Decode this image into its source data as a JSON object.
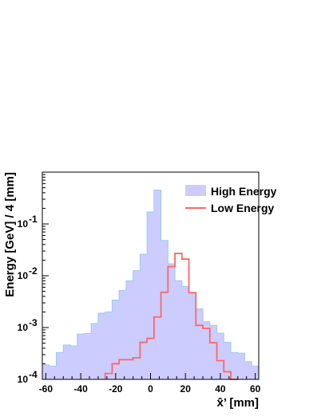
{
  "chart_data": {
    "type": "histogram",
    "xlabel": "x̂’ [mm]",
    "ylabel": "Energy [GeV] / 4 [mm]",
    "xlim": [
      -62,
      62
    ],
    "ylim": [
      0.0001,
      1.0
    ],
    "yscale": "log",
    "bin_width": 4,
    "x_ticks": [
      -60,
      -40,
      -20,
      0,
      20,
      40,
      60
    ],
    "x_tick_labels": [
      "-60",
      "-40",
      "-20",
      "0",
      "20",
      "40",
      "60"
    ],
    "y_ticks": [
      {
        "value": 0.0001,
        "base": "10",
        "exp": "-4"
      },
      {
        "value": 0.001,
        "base": "10",
        "exp": "-3"
      },
      {
        "value": 0.01,
        "base": "10",
        "exp": "-2"
      },
      {
        "value": 0.1,
        "base": "10",
        "exp": "-1"
      }
    ],
    "legend_position": "top-right",
    "series": [
      {
        "name": "High Energy",
        "style": "filled",
        "fill_color": "#ccccff",
        "line_color": "#99ccee",
        "bin_edges": [
          -62,
          -58,
          -54,
          -50,
          -46,
          -42,
          -38,
          -34,
          -30,
          -26,
          -22,
          -18,
          -14,
          -10,
          -6,
          -2,
          2,
          6,
          10,
          14,
          18,
          22,
          26,
          30,
          34,
          38,
          42,
          46,
          50,
          54,
          58,
          62
        ],
        "values": [
          0.00019,
          0.00018,
          0.00033,
          0.00046,
          0.00044,
          0.00075,
          0.00077,
          0.0012,
          0.0019,
          0.002,
          0.0034,
          0.0052,
          0.008,
          0.0125,
          0.026,
          0.17,
          0.45,
          0.048,
          0.017,
          0.008,
          0.0062,
          0.0046,
          0.0023,
          0.0013,
          0.0011,
          0.00078,
          0.00052,
          0.00033,
          0.00032,
          0.00022,
          0.00018
        ]
      },
      {
        "name": "Low Energy",
        "style": "step",
        "line_color": "#ff6666",
        "bin_edges": [
          -26,
          -22,
          -18,
          -14,
          -10,
          -6,
          -2,
          2,
          6,
          10,
          14,
          18,
          22,
          26,
          30,
          34,
          38,
          42,
          46,
          50
        ],
        "values": [
          0.00013,
          0.0002,
          0.00024,
          0.00024,
          0.00026,
          0.00052,
          0.00062,
          0.0016,
          0.0048,
          0.015,
          0.027,
          0.021,
          0.0047,
          0.0011,
          0.00096,
          0.00051,
          0.00023,
          0.00014,
          0.0001
        ]
      }
    ]
  }
}
